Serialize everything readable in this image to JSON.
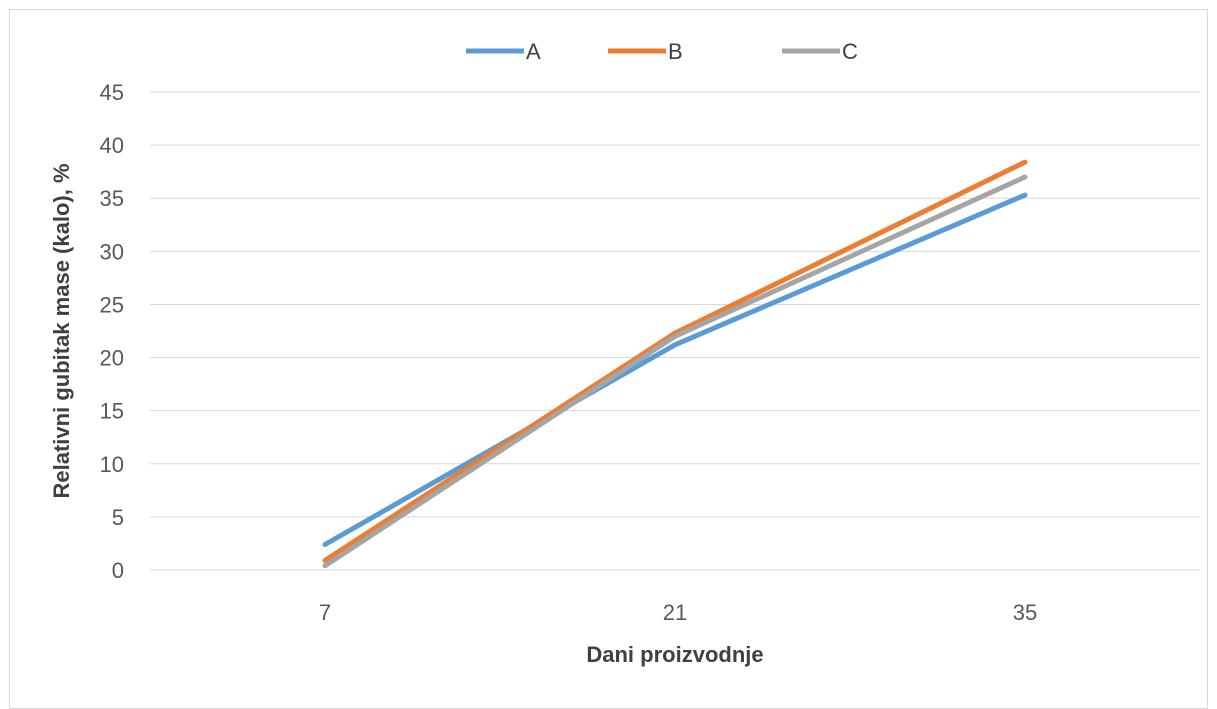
{
  "chart_data": {
    "type": "line",
    "title": "",
    "xlabel": "Dani proizvodnje",
    "ylabel": "Relativni gubitak mase (kalo), %",
    "categories": [
      "7",
      "21",
      "35"
    ],
    "ylim": [
      0,
      45
    ],
    "yticks": [
      0,
      5,
      10,
      15,
      20,
      25,
      30,
      35,
      40,
      45
    ],
    "grid": true,
    "legend_position": "top",
    "series": [
      {
        "name": "A",
        "color": "#5b9bd5",
        "values": [
          2.4,
          21.2,
          35.3
        ]
      },
      {
        "name": "B",
        "color": "#ed7d31",
        "values": [
          0.9,
          22.3,
          38.4
        ]
      },
      {
        "name": "C",
        "color": "#a5a5a5",
        "values": [
          0.4,
          22.0,
          37.0
        ]
      }
    ]
  }
}
